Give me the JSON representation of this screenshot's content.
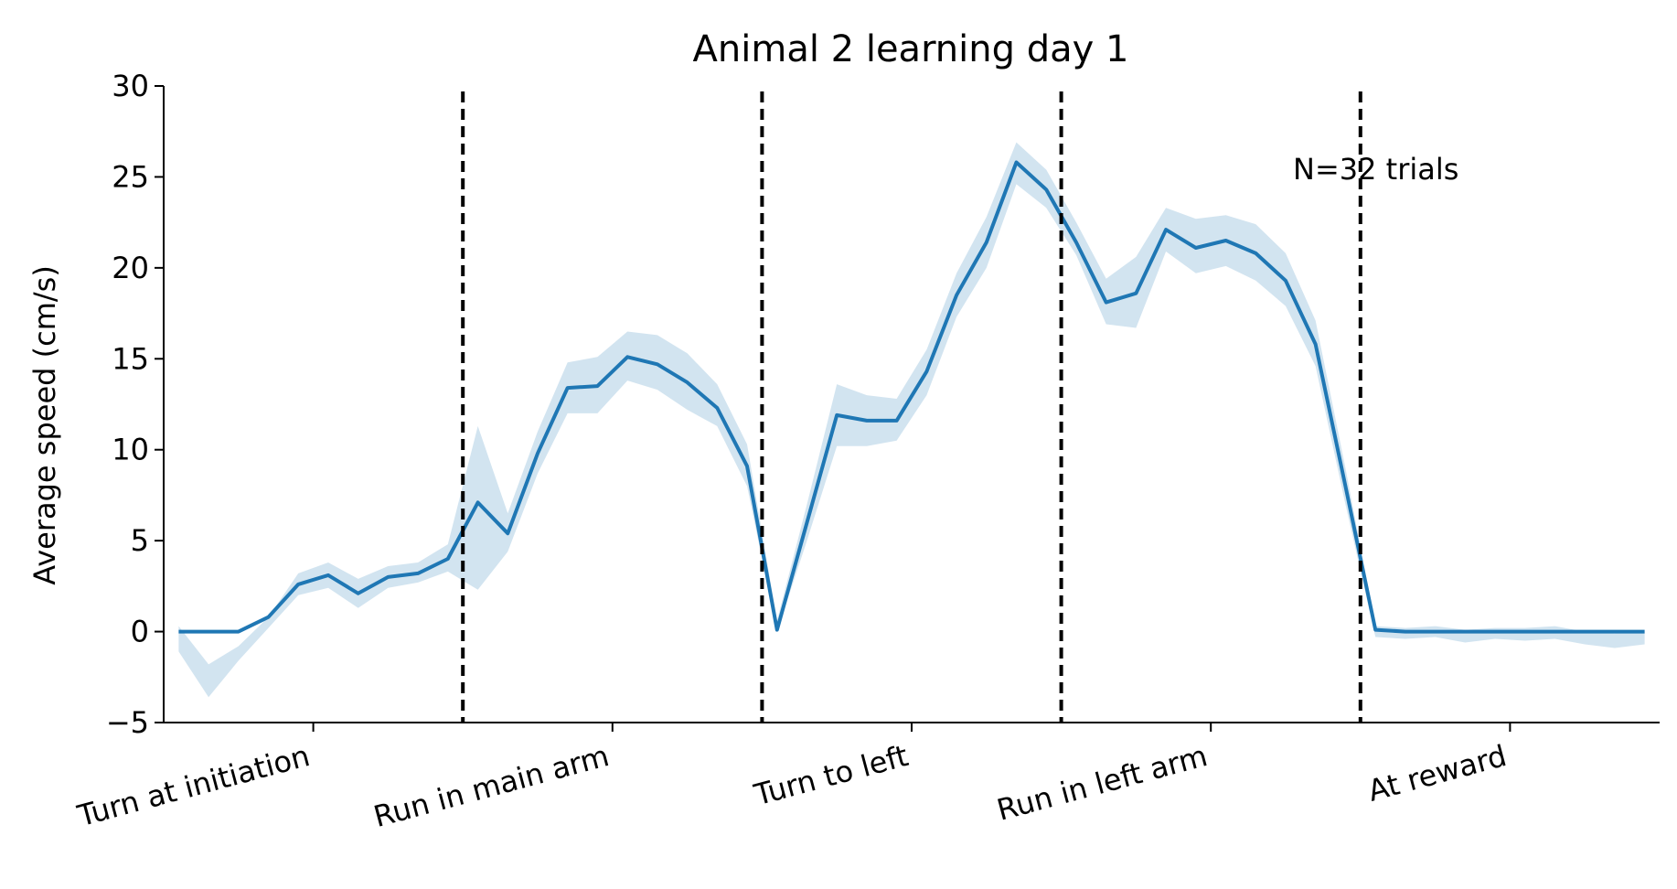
{
  "chart_data": {
    "type": "line",
    "title": "Animal 2 learning day 1",
    "xlabel": "",
    "ylabel": "Average speed (cm/s)",
    "ylim": [
      -5,
      30
    ],
    "yticks": [
      -5,
      0,
      5,
      10,
      15,
      20,
      25,
      30
    ],
    "xlim": [
      -0.5,
      49.5
    ],
    "segments": [
      {
        "label": "Turn at initiation",
        "center": 4.5
      },
      {
        "label": "Run in main arm",
        "center": 14.5
      },
      {
        "label": "Turn to left",
        "center": 24.5
      },
      {
        "label": "Run in left arm",
        "center": 34.5
      },
      {
        "label": "At reward",
        "center": 44.5
      }
    ],
    "boundaries": [
      9.5,
      19.5,
      29.5,
      39.5
    ],
    "annotation": "N=32 trials",
    "grid": false,
    "color": "#1f77b4",
    "series": [
      {
        "x": [
          0,
          1,
          2,
          3,
          4,
          5,
          6,
          7,
          8,
          9,
          10,
          11,
          12,
          13,
          14,
          15,
          16,
          17,
          18,
          19,
          20,
          21,
          22,
          23,
          24,
          25,
          26,
          27,
          28,
          29,
          30,
          31,
          32,
          33,
          34,
          35,
          36,
          37,
          38,
          39,
          40,
          41,
          42,
          43,
          44,
          45,
          46,
          47,
          48,
          49
        ],
        "y": [
          0,
          0,
          0,
          0.8,
          2.6,
          3.1,
          2.1,
          3.0,
          3.2,
          4.0,
          7.1,
          5.4,
          9.8,
          13.4,
          13.5,
          15.1,
          14.7,
          13.7,
          12.3,
          9.1,
          0.1,
          6.0,
          11.9,
          11.6,
          11.6,
          14.3,
          18.5,
          21.4,
          25.8,
          24.3,
          21.4,
          18.1,
          18.6,
          22.1,
          21.1,
          21.5,
          20.8,
          19.3,
          15.8,
          8.0,
          0.1,
          0.0,
          0.0,
          0.0,
          0.0,
          0.0,
          0.0,
          0.0,
          0.0,
          0.0
        ],
        "lower": [
          -1.1,
          -3.6,
          -1.6,
          0.2,
          2.0,
          2.4,
          1.3,
          2.4,
          2.7,
          3.3,
          2.3,
          4.4,
          8.7,
          12.0,
          12.0,
          13.8,
          13.3,
          12.2,
          11.3,
          8.0,
          0.0,
          5.0,
          10.2,
          10.2,
          10.5,
          13.0,
          17.3,
          20.0,
          24.6,
          23.3,
          20.7,
          16.9,
          16.7,
          20.9,
          19.7,
          20.1,
          19.3,
          17.9,
          14.6,
          7.0,
          -0.3,
          -0.4,
          -0.3,
          -0.6,
          -0.4,
          -0.5,
          -0.4,
          -0.7,
          -0.9,
          -0.7
        ],
        "upper": [
          0.3,
          -1.8,
          -0.8,
          0.8,
          3.2,
          3.8,
          2.9,
          3.6,
          3.8,
          4.8,
          11.3,
          6.5,
          11.0,
          14.8,
          15.1,
          16.5,
          16.3,
          15.3,
          13.6,
          10.3,
          0.6,
          7.0,
          13.6,
          13.0,
          12.8,
          15.5,
          19.7,
          22.8,
          26.9,
          25.4,
          22.5,
          19.4,
          20.6,
          23.3,
          22.7,
          22.9,
          22.4,
          20.8,
          17.1,
          9.0,
          0.3,
          0.2,
          0.3,
          0.1,
          0.2,
          0.2,
          0.3,
          0.0,
          -0.1,
          0.0
        ]
      }
    ]
  }
}
